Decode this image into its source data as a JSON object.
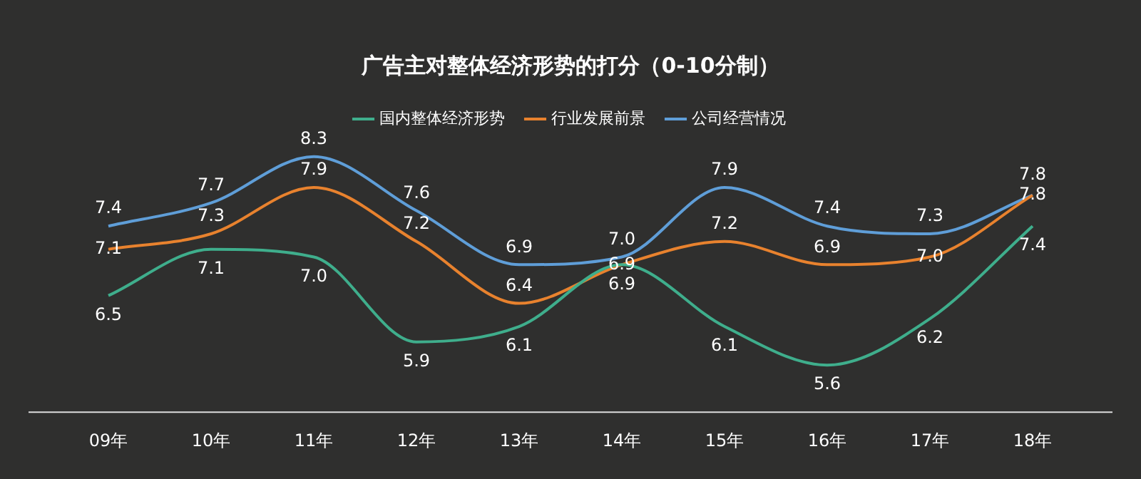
{
  "chart_data": {
    "type": "line",
    "title": "广告主对整体经济形势的打分（0-10分制）",
    "categories": [
      "09年",
      "10年",
      "11年",
      "12年",
      "13年",
      "14年",
      "15年",
      "16年",
      "17年",
      "18年"
    ],
    "series": [
      {
        "name": "国内整体经济形势",
        "color": "#3fae8c",
        "values": [
          6.5,
          7.1,
          7.0,
          5.9,
          6.1,
          6.9,
          6.1,
          5.6,
          6.2,
          7.4
        ],
        "value_labels": [
          "6.5",
          "7.1",
          "7.0",
          "5.9",
          "6.1",
          "6.9",
          "6.1",
          "5.6",
          "6.2",
          "7.4"
        ]
      },
      {
        "name": "行业发展前景",
        "color": "#e8822e",
        "values": [
          7.1,
          7.3,
          7.9,
          7.2,
          6.4,
          6.9,
          7.2,
          6.9,
          7.0,
          7.8
        ],
        "value_labels": [
          "7.1",
          "7.3",
          "7.9",
          "7.2",
          "6.4",
          "6.9",
          "7.2",
          "6.9",
          "7.0",
          "7.8"
        ]
      },
      {
        "name": "公司经营情况",
        "color": "#5f9ed8",
        "values": [
          7.4,
          7.7,
          8.3,
          7.6,
          6.9,
          7.0,
          7.9,
          7.4,
          7.3,
          7.8
        ],
        "value_labels": [
          "7.4",
          "7.7",
          "8.3",
          "7.6",
          "6.9",
          "7.0",
          "7.9",
          "7.4",
          "7.3",
          "7.8"
        ]
      }
    ],
    "legend": "top",
    "marker": "none",
    "line_style": "solid"
  }
}
